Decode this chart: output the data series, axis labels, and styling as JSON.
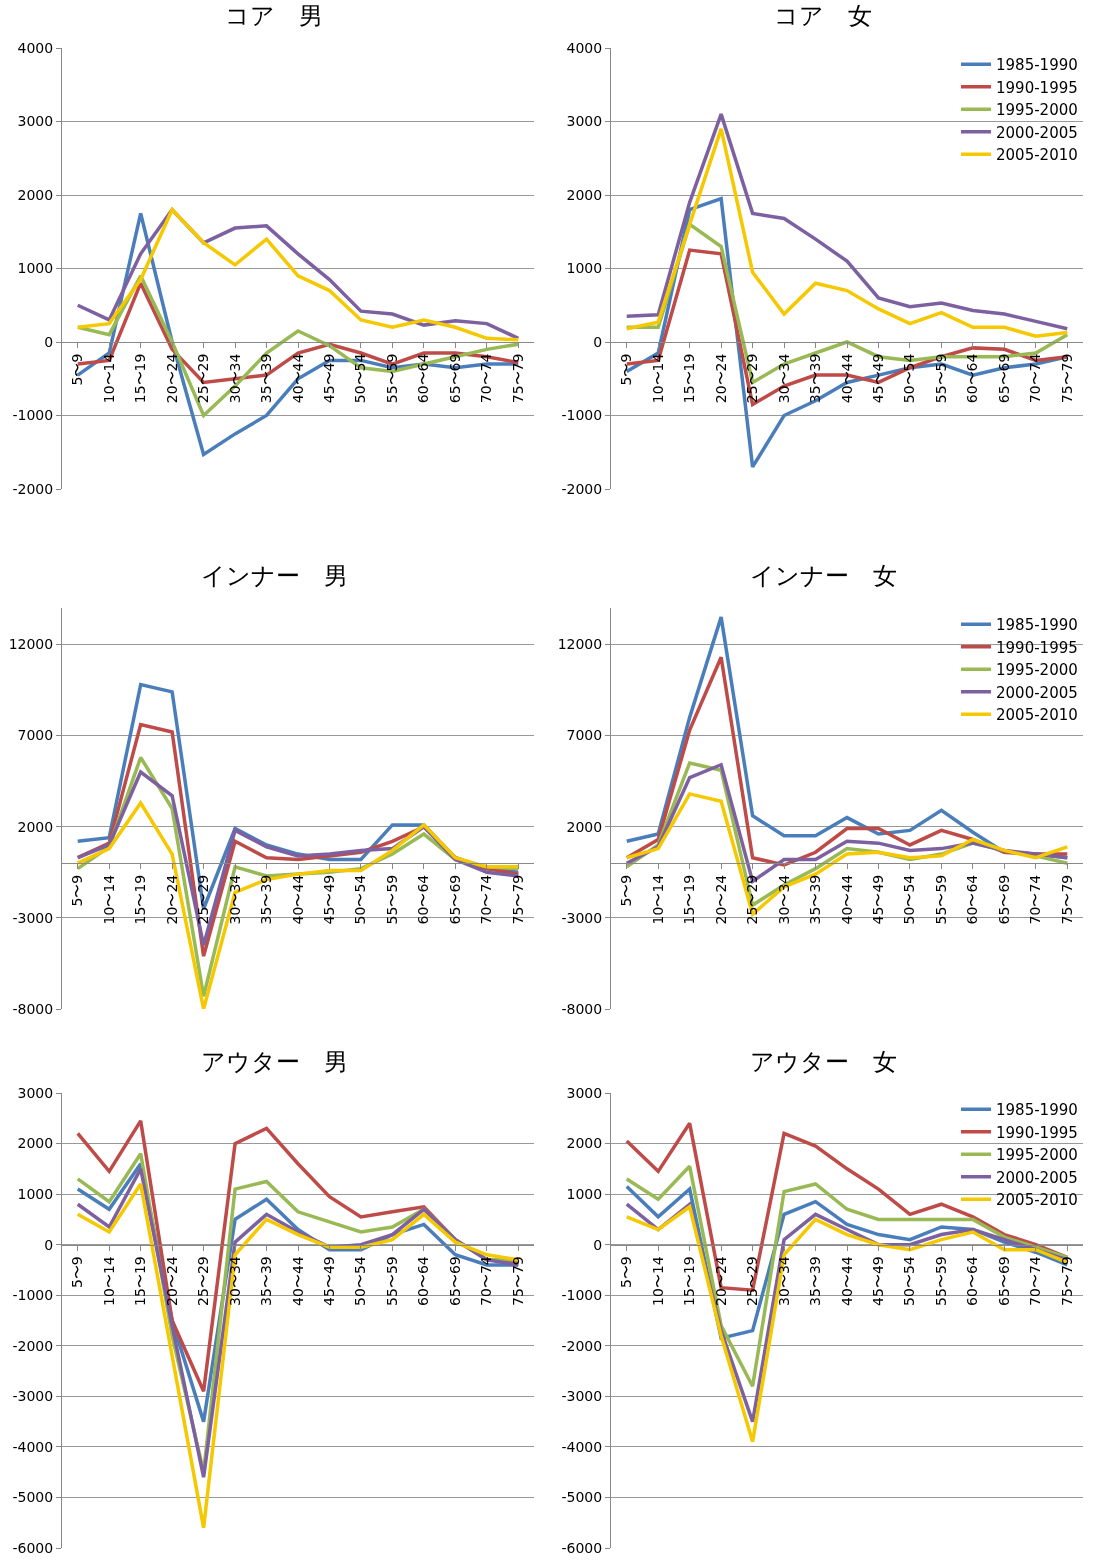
{
  "chart_data": [
    {
      "type": "line",
      "title": "コア　男",
      "categories": [
        "5〜9",
        "10〜14",
        "15〜19",
        "20〜24",
        "25〜29",
        "30〜34",
        "35〜39",
        "40〜44",
        "45〜49",
        "50〜54",
        "55〜59",
        "60〜64",
        "65〜69",
        "70〜74",
        "75〜79"
      ],
      "ylim": [
        -2000,
        4000
      ],
      "yticks": [
        -2000,
        -1000,
        0,
        1000,
        2000,
        3000,
        4000
      ],
      "grid": "y",
      "series": [
        {
          "color": "#4a7ebb",
          "values": [
            -450,
            -150,
            1750,
            0,
            -1530,
            -1250,
            -1000,
            -500,
            -250,
            -250,
            -350,
            -300,
            -350,
            -300,
            -300
          ]
        },
        {
          "color": "#be4b48",
          "values": [
            -300,
            -250,
            800,
            -100,
            -550,
            -500,
            -450,
            -150,
            -30,
            -150,
            -300,
            -150,
            -150,
            -200,
            -280
          ]
        },
        {
          "color": "#98b954",
          "values": [
            200,
            100,
            900,
            0,
            -1000,
            -600,
            -150,
            150,
            -50,
            -350,
            -400,
            -300,
            -200,
            -100,
            -30
          ]
        },
        {
          "color": "#7d60a0",
          "values": [
            500,
            300,
            1200,
            1800,
            1350,
            1550,
            1580,
            1200,
            850,
            420,
            380,
            230,
            290,
            250,
            50
          ]
        },
        {
          "color": "#f5c800",
          "values": [
            200,
            250,
            850,
            1800,
            1350,
            1050,
            1400,
            900,
            700,
            300,
            200,
            300,
            200,
            50,
            30
          ]
        }
      ]
    },
    {
      "type": "line",
      "title": "コア　女",
      "categories": [
        "5〜9",
        "10〜14",
        "15〜19",
        "20〜24",
        "25〜29",
        "30〜34",
        "35〜39",
        "40〜44",
        "45〜49",
        "50〜54",
        "55〜59",
        "60〜64",
        "65〜69",
        "70〜74",
        "75〜79"
      ],
      "ylim": [
        -2000,
        4000
      ],
      "yticks": [
        -2000,
        -1000,
        0,
        1000,
        2000,
        3000,
        4000
      ],
      "grid": "y",
      "legend": "top right",
      "series": [
        {
          "name": "1985-1990",
          "color": "#4a7ebb",
          "values": [
            -400,
            -150,
            1800,
            1950,
            -1700,
            -1000,
            -800,
            -550,
            -450,
            -350,
            -300,
            -450,
            -350,
            -300,
            -200
          ]
        },
        {
          "name": "1990-1995",
          "color": "#be4b48",
          "values": [
            -300,
            -250,
            1250,
            1200,
            -850,
            -600,
            -450,
            -450,
            -550,
            -350,
            -200,
            -80,
            -100,
            -250,
            -200
          ]
        },
        {
          "name": "1995-2000",
          "color": "#98b954",
          "values": [
            200,
            200,
            1600,
            1300,
            -550,
            -300,
            -150,
            0,
            -200,
            -250,
            -200,
            -200,
            -200,
            -150,
            100
          ]
        },
        {
          "name": "2000-2005",
          "color": "#7d60a0",
          "values": [
            350,
            370,
            1900,
            3100,
            1750,
            1680,
            1400,
            1100,
            600,
            480,
            530,
            430,
            380,
            280,
            180
          ]
        },
        {
          "name": "2005-2010",
          "color": "#f5c800",
          "values": [
            180,
            270,
            1600,
            2900,
            950,
            380,
            800,
            700,
            450,
            250,
            400,
            200,
            200,
            80,
            130
          ]
        }
      ]
    },
    {
      "type": "line",
      "title": "インナー　男",
      "categories": [
        "5〜9",
        "10〜14",
        "15〜19",
        "20〜24",
        "25〜29",
        "30〜34",
        "35〜39",
        "40〜44",
        "45〜49",
        "50〜54",
        "55〜59",
        "60〜64",
        "65〜69",
        "70〜74",
        "75〜79"
      ],
      "ylim": [
        -8000,
        14000
      ],
      "yticks": [
        -8000,
        -3000,
        2000,
        7000,
        12000
      ],
      "grid": "y",
      "series": [
        {
          "color": "#4a7ebb",
          "values": [
            1200,
            1400,
            9800,
            9400,
            -2500,
            1900,
            1000,
            500,
            200,
            200,
            2100,
            2100,
            300,
            -300,
            -500
          ]
        },
        {
          "color": "#be4b48",
          "values": [
            300,
            1100,
            7600,
            7200,
            -5100,
            1200,
            300,
            200,
            400,
            600,
            1200,
            2000,
            300,
            -300,
            -600
          ]
        },
        {
          "color": "#98b954",
          "values": [
            -300,
            900,
            5800,
            3000,
            -7300,
            -200,
            -700,
            -600,
            -500,
            -300,
            500,
            1600,
            200,
            -200,
            -300
          ]
        },
        {
          "color": "#7d60a0",
          "values": [
            300,
            1000,
            5000,
            3700,
            -4500,
            1800,
            900,
            400,
            500,
            700,
            800,
            2000,
            200,
            -500,
            -700
          ]
        },
        {
          "color": "#f5c800",
          "values": [
            0,
            800,
            3300,
            500,
            -8000,
            -1600,
            -900,
            -600,
            -400,
            -400,
            700,
            2100,
            300,
            -200,
            -200
          ]
        }
      ]
    },
    {
      "type": "line",
      "title": "インナー　女",
      "categories": [
        "5〜9",
        "10〜14",
        "15〜19",
        "20〜24",
        "25〜29",
        "30〜34",
        "35〜39",
        "40〜44",
        "45〜49",
        "50〜54",
        "55〜59",
        "60〜64",
        "65〜69",
        "70〜74",
        "75〜79"
      ],
      "ylim": [
        -8000,
        14000
      ],
      "yticks": [
        -8000,
        -3000,
        2000,
        7000,
        12000
      ],
      "grid": "y",
      "legend": "top right",
      "series": [
        {
          "name": "1985-1990",
          "color": "#4a7ebb",
          "values": [
            1200,
            1600,
            8000,
            13500,
            2600,
            1500,
            1500,
            2500,
            1600,
            1800,
            2900,
            1700,
            600,
            500,
            300
          ]
        },
        {
          "name": "1990-1995",
          "color": "#be4b48",
          "values": [
            300,
            1300,
            7300,
            11300,
            300,
            -100,
            600,
            1900,
            1900,
            1000,
            1800,
            1300,
            600,
            500,
            500
          ]
        },
        {
          "name": "1995-2000",
          "color": "#98b954",
          "values": [
            -200,
            1000,
            5500,
            5100,
            -2300,
            -1200,
            -300,
            800,
            600,
            200,
            500,
            1100,
            700,
            400,
            0
          ]
        },
        {
          "name": "2000-2005",
          "color": "#7d60a0",
          "values": [
            0,
            900,
            4700,
            5400,
            -1000,
            200,
            200,
            1200,
            1100,
            700,
            800,
            1100,
            700,
            500,
            300
          ]
        },
        {
          "name": "2005-2010",
          "color": "#f5c800",
          "values": [
            300,
            800,
            3800,
            3400,
            -2800,
            -1300,
            -600,
            500,
            600,
            300,
            400,
            1300,
            700,
            300,
            900
          ]
        }
      ]
    },
    {
      "type": "line",
      "title": "アウター　男",
      "categories": [
        "5〜9",
        "10〜14",
        "15〜19",
        "20〜24",
        "25〜29",
        "30〜34",
        "35〜39",
        "40〜44",
        "45〜49",
        "50〜54",
        "55〜59",
        "60〜64",
        "65〜69",
        "70〜74",
        "75〜79"
      ],
      "ylim": [
        -6000,
        3000
      ],
      "yticks": [
        -6000,
        -5000,
        -4000,
        -3000,
        -2000,
        -1000,
        0,
        1000,
        2000,
        3000
      ],
      "grid": "y",
      "series": [
        {
          "color": "#4a7ebb",
          "values": [
            1100,
            700,
            1600,
            -1500,
            -3500,
            500,
            900,
            300,
            -100,
            -100,
            200,
            400,
            -200,
            -400,
            -400
          ]
        },
        {
          "color": "#be4b48",
          "values": [
            2200,
            1450,
            2450,
            -1500,
            -2900,
            2000,
            2300,
            1600,
            950,
            550,
            650,
            750,
            100,
            -300,
            -350
          ]
        },
        {
          "color": "#98b954",
          "values": [
            1300,
            850,
            1800,
            -1800,
            -4500,
            1100,
            1250,
            650,
            450,
            250,
            350,
            700,
            100,
            -300,
            -300
          ]
        },
        {
          "color": "#7d60a0",
          "values": [
            800,
            350,
            1500,
            -1600,
            -4600,
            50,
            600,
            250,
            -50,
            0,
            200,
            700,
            100,
            -300,
            -400
          ]
        },
        {
          "color": "#f5c800",
          "values": [
            600,
            250,
            1200,
            -2200,
            -5600,
            -200,
            500,
            200,
            -50,
            -50,
            100,
            600,
            50,
            -200,
            -300
          ]
        }
      ]
    },
    {
      "type": "line",
      "title": "アウター　女",
      "categories": [
        "5〜9",
        "10〜14",
        "15〜19",
        "20〜24",
        "25〜29",
        "30〜34",
        "35〜39",
        "40〜44",
        "45〜49",
        "50〜54",
        "55〜59",
        "60〜64",
        "65〜69",
        "70〜74",
        "75〜79"
      ],
      "ylim": [
        -6000,
        3000
      ],
      "yticks": [
        -6000,
        -5000,
        -4000,
        -3000,
        -2000,
        -1000,
        0,
        1000,
        2000,
        3000
      ],
      "grid": "y",
      "legend": "top right",
      "series": [
        {
          "name": "1985-1990",
          "color": "#4a7ebb",
          "values": [
            1150,
            550,
            1100,
            -1850,
            -1700,
            600,
            850,
            400,
            200,
            100,
            350,
            300,
            50,
            -150,
            -400
          ]
        },
        {
          "name": "1990-1995",
          "color": "#be4b48",
          "values": [
            2050,
            1450,
            2400,
            -850,
            -900,
            2200,
            1950,
            1500,
            1100,
            600,
            800,
            550,
            200,
            0,
            -250
          ]
        },
        {
          "name": "1995-2000",
          "color": "#98b954",
          "values": [
            1300,
            900,
            1550,
            -1600,
            -2800,
            1050,
            1200,
            700,
            500,
            500,
            500,
            500,
            150,
            -50,
            -250
          ]
        },
        {
          "name": "2000-2005",
          "color": "#7d60a0",
          "values": [
            800,
            300,
            800,
            -1700,
            -3500,
            100,
            600,
            300,
            0,
            0,
            200,
            300,
            100,
            -100,
            -300
          ]
        },
        {
          "name": "2005-2010",
          "color": "#f5c800",
          "values": [
            550,
            300,
            750,
            -1800,
            -3900,
            -200,
            500,
            200,
            0,
            -100,
            100,
            250,
            -100,
            -100,
            -350
          ]
        }
      ]
    }
  ]
}
